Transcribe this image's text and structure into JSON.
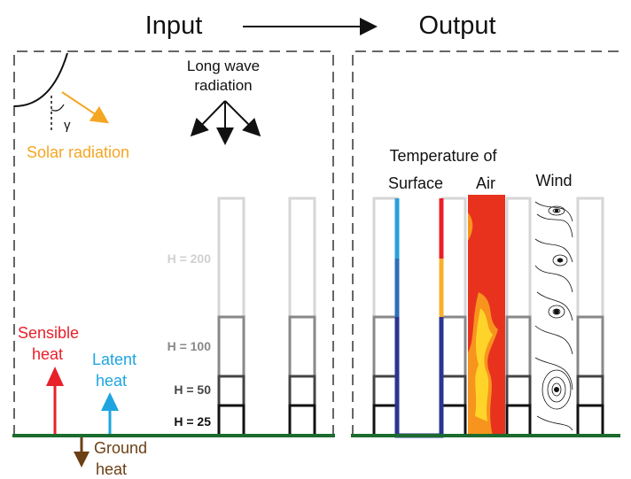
{
  "header": {
    "input_label": "Input",
    "output_label": "Output"
  },
  "input_panel": {
    "gamma_symbol": "γ",
    "solar_label": "Solar radiation",
    "longwave_line1": "Long wave",
    "longwave_line2": "radiation",
    "sensible_line1": "Sensible",
    "sensible_line2": "heat",
    "latent_line1": "Latent",
    "latent_line2": "heat",
    "ground_line1": "Ground",
    "ground_line2": "heat",
    "height_labels": [
      "H = 200",
      "H = 100",
      "H = 50",
      "H = 25"
    ]
  },
  "output_panel": {
    "temperature_line1": "Temperature of",
    "temperature_line2": "Surface",
    "air_label": "Air",
    "wind_label": "Wind"
  },
  "colors": {
    "solar": "#f5a623",
    "sensible": "#e8202a",
    "latent": "#1ea5e0",
    "ground": "#6b3f14",
    "ground_line": "#1a6b2e",
    "surface_dark": "#2b3590",
    "surface_mid": "#2f6fb5",
    "surface_light": "#2aa0dd",
    "air_red": "#e8321e",
    "air_orange": "#f7941d",
    "air_yellow": "#ffd42a"
  }
}
